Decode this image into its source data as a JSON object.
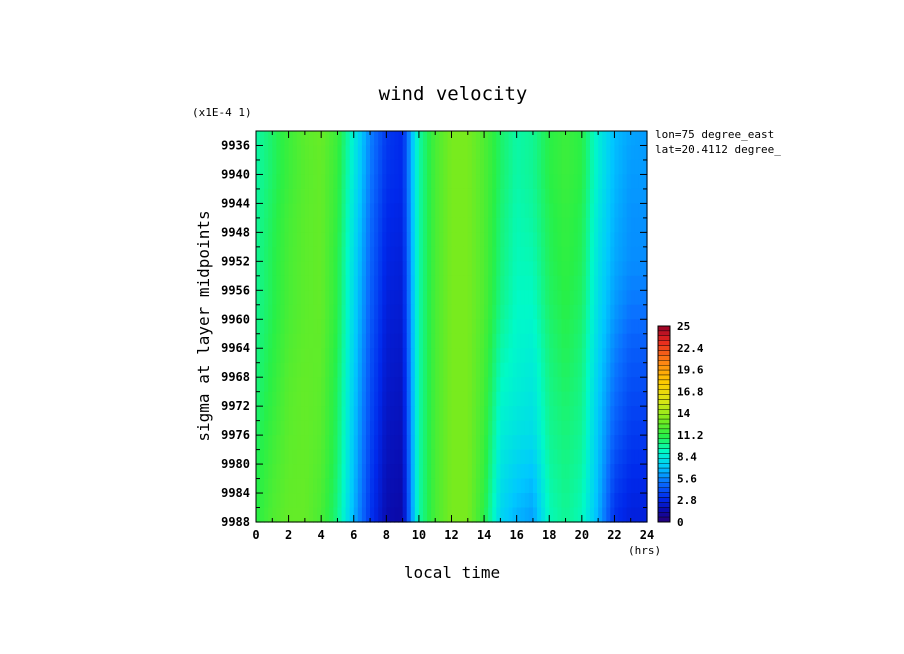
{
  "chart_data": {
    "type": "heatmap",
    "title": "wind velocity",
    "xlabel": "local time",
    "ylabel": "sigma at layer midpoints",
    "x_unit": "(hrs)",
    "y_scale_note": "(x1E-4 1)",
    "annotations": [
      "lon=75 degree_east",
      "lat=20.4112 degree_"
    ],
    "xlim": [
      0,
      24
    ],
    "ylim": [
      9934,
      9988
    ],
    "y_reversed": true,
    "x_ticks": [
      "0",
      "2",
      "4",
      "6",
      "8",
      "10",
      "12",
      "14",
      "16",
      "18",
      "20",
      "22",
      "24"
    ],
    "y_ticks": [
      "9936",
      "9940",
      "9944",
      "9948",
      "9952",
      "9956",
      "9960",
      "9964",
      "9968",
      "9972",
      "9976",
      "9980",
      "9984",
      "9988"
    ],
    "colorbar": {
      "min": 0,
      "max": 25,
      "labels": [
        "25",
        "22.4",
        "19.6",
        "16.8",
        "14",
        "11.2",
        "8.4",
        "5.6",
        "2.8",
        "0"
      ]
    },
    "x": [
      0,
      1,
      2,
      3,
      4,
      5,
      6,
      7,
      8,
      9,
      10,
      11,
      12,
      13,
      14,
      15,
      16,
      17,
      18,
      19,
      20,
      21,
      22,
      23,
      24
    ],
    "y": [
      9934,
      9940,
      9946,
      9952,
      9958,
      9964,
      9970,
      9976,
      9982,
      9988
    ],
    "z": [
      [
        9.5,
        10.5,
        11.5,
        12.3,
        12.6,
        11.5,
        8.5,
        5.5,
        3.5,
        3.0,
        9.5,
        11.8,
        13.0,
        13.0,
        12.0,
        10.5,
        9.5,
        9.8,
        11.0,
        11.5,
        11.0,
        8.5,
        6.8,
        6.2,
        6.0
      ],
      [
        9.5,
        10.5,
        11.5,
        12.2,
        12.5,
        11.3,
        8.3,
        5.3,
        3.3,
        3.0,
        9.5,
        11.8,
        13.0,
        13.0,
        12.0,
        10.5,
        9.5,
        9.8,
        11.0,
        11.5,
        11.0,
        8.5,
        6.7,
        6.0,
        6.0
      ],
      [
        9.7,
        10.7,
        11.7,
        12.3,
        12.5,
        11.2,
        8.0,
        5.0,
        3.0,
        2.8,
        9.5,
        11.8,
        13.0,
        13.0,
        12.0,
        10.3,
        9.3,
        9.6,
        10.8,
        11.3,
        10.8,
        8.2,
        6.5,
        5.8,
        5.8
      ],
      [
        9.8,
        10.8,
        11.8,
        12.3,
        12.5,
        11.0,
        7.8,
        4.8,
        2.8,
        2.6,
        9.5,
        11.8,
        13.0,
        13.0,
        12.0,
        10.2,
        9.2,
        9.3,
        10.7,
        11.2,
        10.7,
        8.0,
        6.3,
        5.7,
        5.7
      ],
      [
        9.8,
        10.8,
        11.8,
        12.3,
        12.5,
        11.0,
        7.6,
        4.6,
        2.6,
        2.4,
        9.5,
        11.8,
        13.0,
        13.0,
        12.0,
        10.0,
        9.0,
        9.0,
        10.5,
        11.0,
        10.5,
        7.8,
        6.0,
        5.2,
        5.2
      ],
      [
        10.0,
        11.0,
        12.0,
        12.4,
        12.4,
        10.8,
        7.4,
        4.3,
        2.4,
        2.2,
        9.5,
        11.8,
        13.0,
        13.0,
        11.8,
        9.5,
        8.8,
        8.6,
        10.2,
        10.8,
        10.2,
        7.5,
        5.5,
        4.5,
        4.5
      ],
      [
        10.2,
        11.2,
        12.2,
        12.5,
        12.3,
        10.6,
        7.2,
        4.1,
        2.2,
        2.0,
        9.5,
        11.8,
        13.0,
        13.0,
        11.7,
        9.0,
        8.5,
        8.2,
        10.0,
        10.5,
        10.0,
        7.2,
        5.0,
        4.0,
        4.0
      ],
      [
        10.5,
        11.5,
        12.3,
        12.5,
        12.2,
        10.5,
        7.0,
        3.9,
        2.0,
        1.8,
        9.5,
        11.8,
        13.0,
        13.0,
        11.5,
        8.5,
        8.0,
        7.8,
        9.8,
        10.2,
        9.8,
        7.0,
        4.5,
        3.5,
        3.5
      ],
      [
        10.8,
        11.8,
        12.4,
        12.5,
        12.0,
        10.3,
        6.8,
        3.6,
        1.8,
        1.6,
        9.5,
        11.8,
        13.0,
        13.0,
        11.3,
        8.0,
        7.2,
        6.8,
        9.5,
        10.0,
        9.5,
        6.8,
        3.8,
        3.0,
        3.0
      ],
      [
        11.0,
        12.0,
        12.5,
        12.5,
        11.8,
        10.0,
        6.5,
        3.4,
        1.6,
        1.4,
        9.5,
        11.8,
        13.0,
        13.0,
        11.0,
        7.5,
        6.5,
        6.0,
        9.2,
        9.8,
        9.2,
        6.5,
        3.2,
        2.6,
        2.6
      ]
    ]
  }
}
